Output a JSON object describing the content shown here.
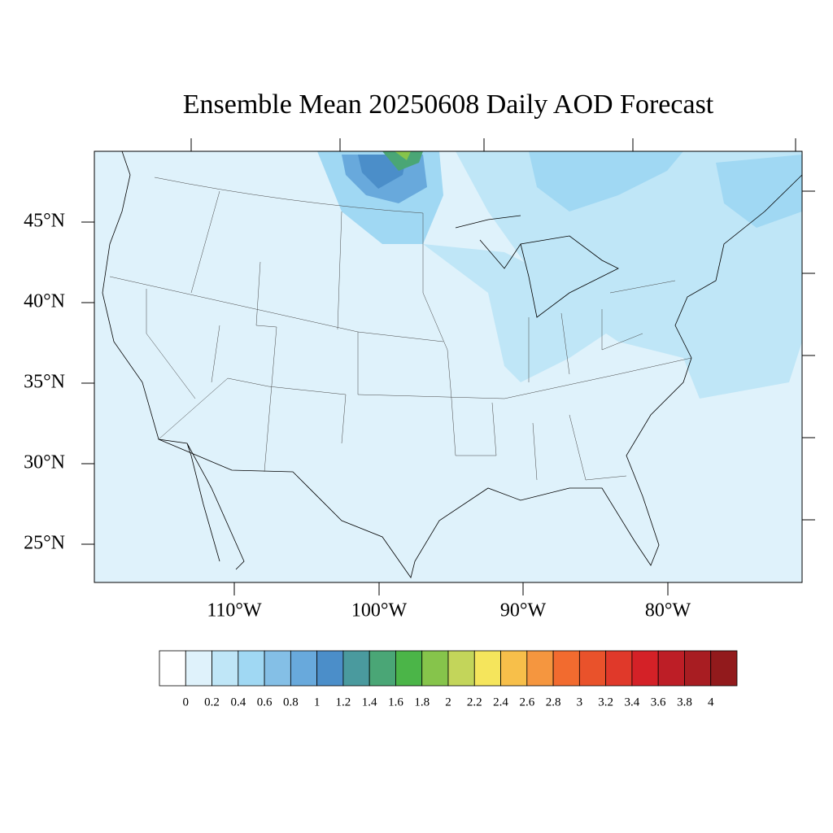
{
  "title": "Ensemble Mean 20250608 Daily AOD Forecast",
  "latitude_labels": [
    "45°N",
    "40°N",
    "35°N",
    "30°N",
    "25°N"
  ],
  "longitude_labels": [
    "110°W",
    "100°W",
    "90°W",
    "80°W"
  ],
  "colorbar": {
    "labels": [
      "0",
      "0.2",
      "0.4",
      "0.6",
      "0.8",
      "1",
      "1.2",
      "1.4",
      "1.6",
      "1.8",
      "2",
      "2.2",
      "2.4",
      "2.6",
      "2.8",
      "3",
      "3.2",
      "3.4",
      "3.6",
      "3.8",
      "4"
    ],
    "colors": [
      "#ffffff",
      "#dff2fb",
      "#bfe6f7",
      "#a0d8f3",
      "#84bfe6",
      "#68a9dc",
      "#4b8ec9",
      "#4a9a9e",
      "#4aa676",
      "#4bb548",
      "#86c44b",
      "#c3d55a",
      "#f5e55c",
      "#f7bf4a",
      "#f5963f",
      "#f26b2f",
      "#e9522b",
      "#e0392a",
      "#d42127",
      "#bd1e26",
      "#a81d22",
      "#921a1c"
    ]
  }
}
